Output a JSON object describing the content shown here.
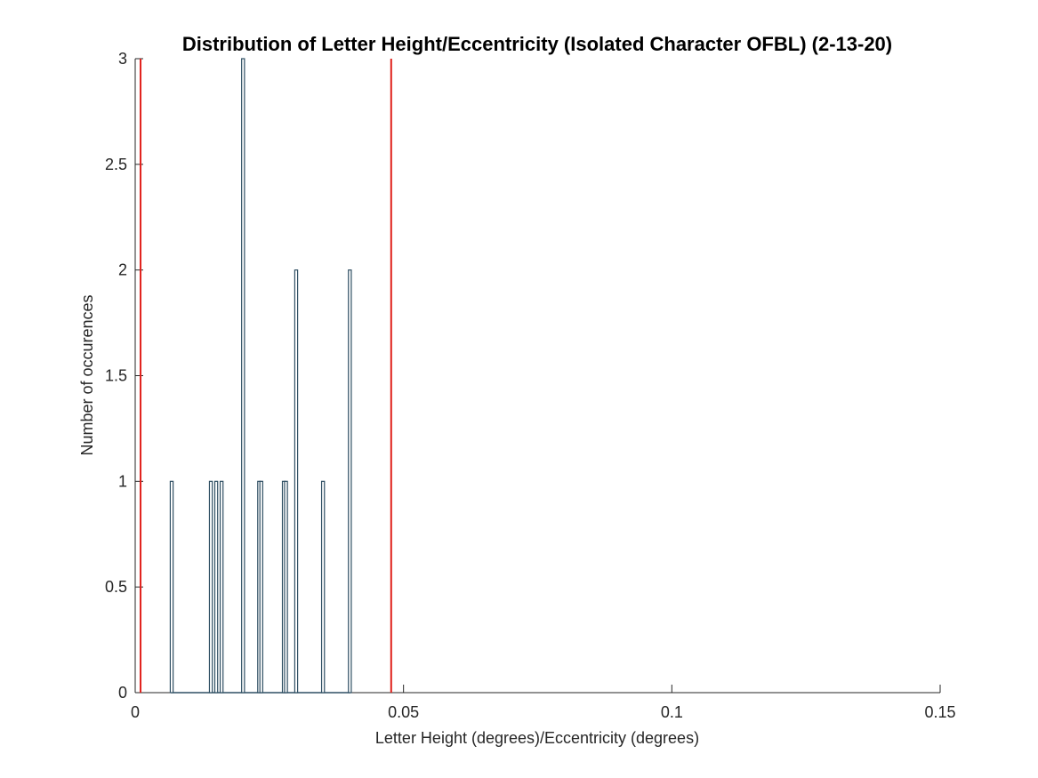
{
  "chart_data": {
    "type": "bar",
    "title": "Distribution of Letter Height/Eccentricity (Isolated Character OFBL) (2-13-20)",
    "xlabel": "Letter Height (degrees)/Eccentricity (degrees)",
    "ylabel": "Number of occurences",
    "xlim": [
      0,
      0.15
    ],
    "ylim": [
      0,
      3
    ],
    "xticks": [
      0,
      0.05,
      0.1,
      0.15
    ],
    "xtick_labels": [
      "0",
      "0.05",
      "0.1",
      "0.15"
    ],
    "yticks": [
      0,
      0.5,
      1,
      1.5,
      2,
      2.5,
      3
    ],
    "ytick_labels": [
      "0",
      "0.5",
      "1",
      "1.5",
      "2",
      "2.5",
      "3"
    ],
    "grid": false,
    "bar_color": "#2f4f63",
    "bins": [
      {
        "x": 0.0068,
        "value": 1
      },
      {
        "x": 0.0141,
        "value": 1
      },
      {
        "x": 0.0151,
        "value": 1
      },
      {
        "x": 0.0161,
        "value": 1
      },
      {
        "x": 0.0201,
        "value": 3
      },
      {
        "x": 0.0231,
        "value": 1
      },
      {
        "x": 0.0235,
        "value": 1
      },
      {
        "x": 0.0277,
        "value": 1
      },
      {
        "x": 0.0281,
        "value": 1
      },
      {
        "x": 0.03,
        "value": 2
      },
      {
        "x": 0.035,
        "value": 1
      },
      {
        "x": 0.04,
        "value": 2
      }
    ],
    "reference_lines": [
      {
        "x": 0.001,
        "color": "#e0201b"
      },
      {
        "x": 0.0477,
        "color": "#e0201b"
      }
    ]
  }
}
